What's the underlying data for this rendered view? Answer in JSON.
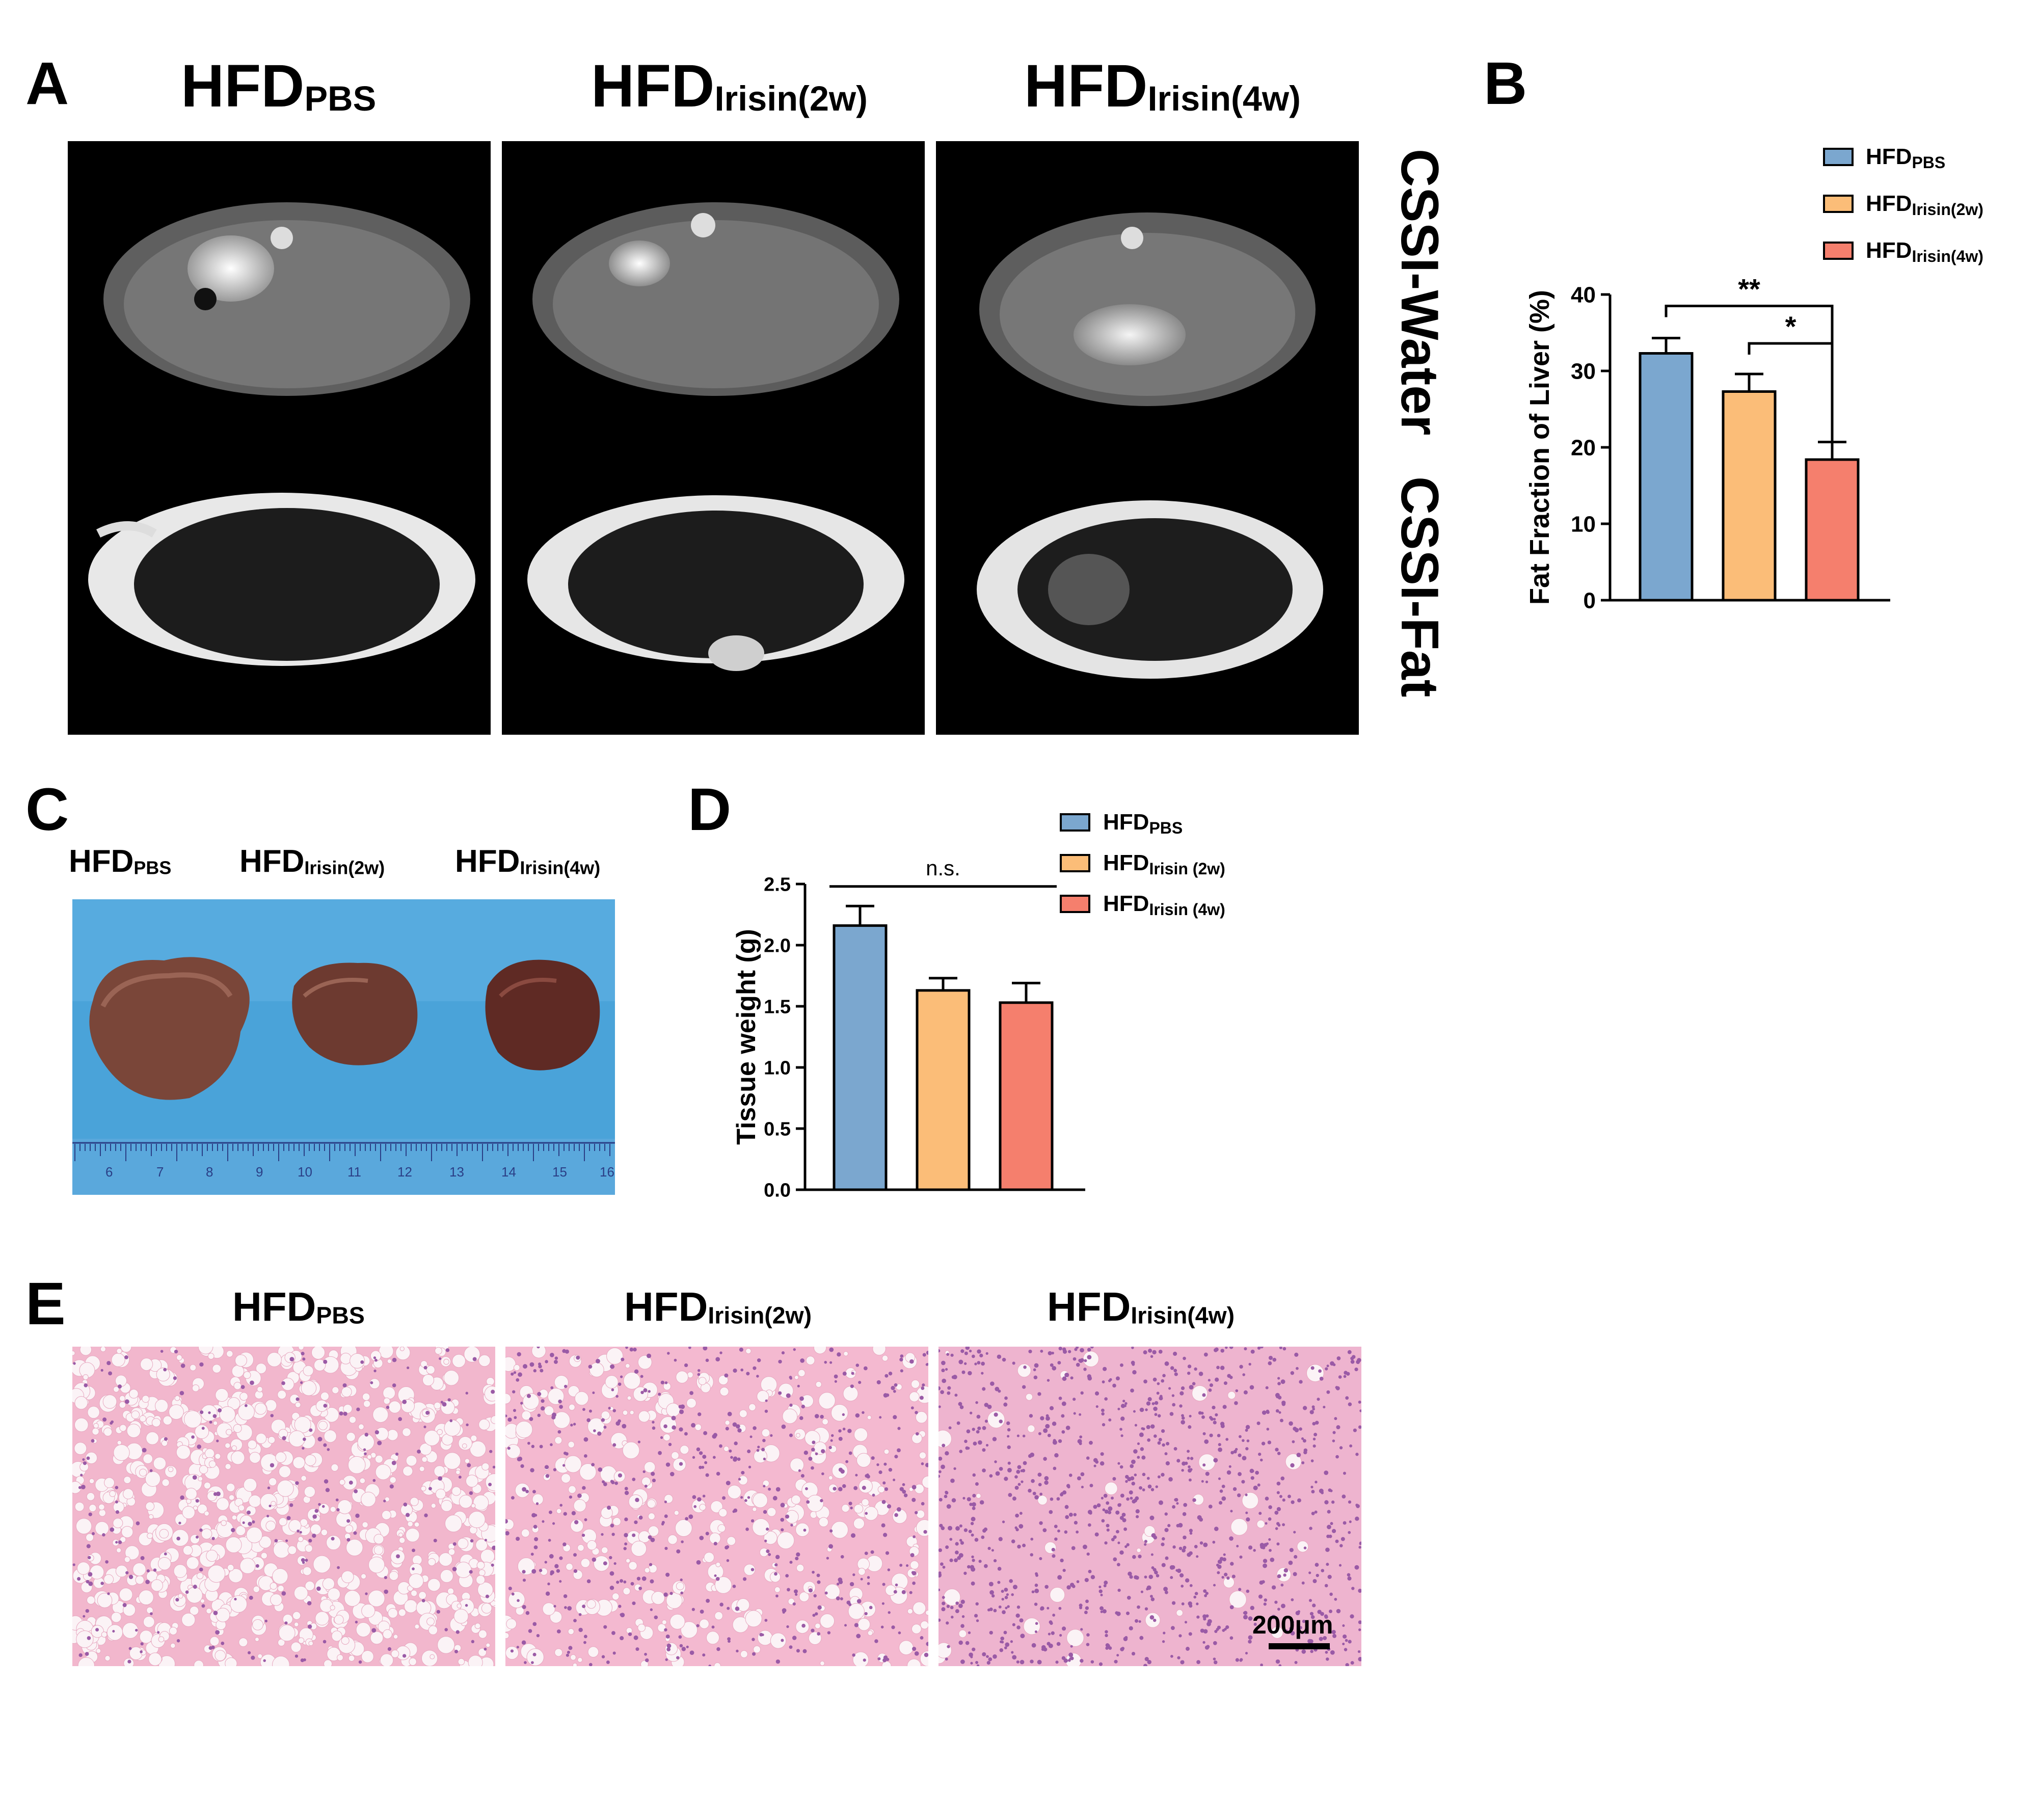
{
  "panels": {
    "A": {
      "letter": "A",
      "titles": [
        {
          "main": "HFD",
          "sub": "PBS"
        },
        {
          "main": "HFD",
          "sub": "Irisin(2w)"
        },
        {
          "main": "HFD",
          "sub": "Irisin(4w)"
        }
      ],
      "row_labels": [
        "CSSI-Water",
        "CSSI-Fat"
      ]
    },
    "B": {
      "letter": "B"
    },
    "C": {
      "letter": "C",
      "titles": [
        {
          "main": "HFD",
          "sub": "PBS"
        },
        {
          "main": "HFD",
          "sub": "Irisin(2w)"
        },
        {
          "main": "HFD",
          "sub": "Irisin(4w)"
        }
      ],
      "ruler_marks": [
        "6",
        "7",
        "8",
        "9",
        "10",
        "11",
        "12",
        "13",
        "14",
        "15",
        "16"
      ]
    },
    "D": {
      "letter": "D"
    },
    "E": {
      "letter": "E",
      "titles": [
        {
          "main": "HFD",
          "sub": "PBS"
        },
        {
          "main": "HFD",
          "sub": "Irisin(2w)"
        },
        {
          "main": "HFD",
          "sub": "Irisin(4w)"
        }
      ],
      "scale_bar": "200μm"
    }
  },
  "colors": {
    "blue": "#7ba7cf",
    "orange": "#fbbd78",
    "red": "#f57f6d",
    "tissue_bg": "#f3bfd3",
    "tray": "#4aa3d9"
  },
  "chart_data": [
    {
      "type": "bar",
      "panel": "B",
      "categories": [
        "HFDPBS",
        "HFDIrisin(2w)",
        "HFDIrisin(4w)"
      ],
      "legend": [
        {
          "main": "HFD",
          "sub": "PBS"
        },
        {
          "main": "HFD",
          "sub": "Irisin(2w)"
        },
        {
          "main": "HFD",
          "sub": "Irisin(4w)"
        }
      ],
      "values": [
        32.3,
        27.3,
        18.4
      ],
      "errors": [
        2.0,
        2.3,
        2.3
      ],
      "ylabel": "Fat Fraction of Liver (%)",
      "ylim": [
        0,
        40
      ],
      "yticks": [
        0,
        10,
        20,
        30,
        40
      ],
      "significance": [
        {
          "from": 0,
          "to": 2,
          "label": "**"
        },
        {
          "from": 1,
          "to": 2,
          "label": "*"
        }
      ],
      "legend_position": "top-right"
    },
    {
      "type": "bar",
      "panel": "D",
      "categories": [
        "HFDPBS",
        "HFDIrisin (2w)",
        "HFDIrisin (4w)"
      ],
      "legend": [
        {
          "main": "HFD",
          "sub": "PBS"
        },
        {
          "main": "HFD",
          "sub": "Irisin (2w)"
        },
        {
          "main": "HFD",
          "sub": "Irisin (4w)"
        }
      ],
      "values": [
        2.16,
        1.63,
        1.53
      ],
      "errors": [
        0.16,
        0.1,
        0.16
      ],
      "ylabel": "Tissue weight (g)",
      "ylim": [
        0,
        2.5
      ],
      "yticks": [
        "0.0",
        "0.5",
        "1.0",
        "1.5",
        "2.0",
        "2.5"
      ],
      "significance": [
        {
          "from": 0,
          "to": 2,
          "label": "n.s."
        }
      ],
      "legend_position": "top-right"
    }
  ]
}
